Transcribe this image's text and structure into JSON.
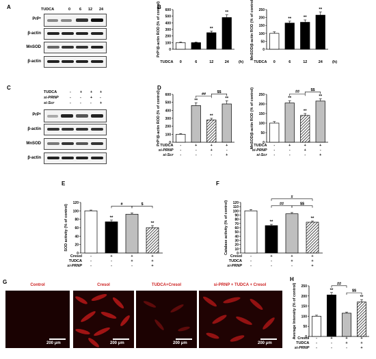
{
  "panel_labels": {
    "A": "A",
    "B": "B",
    "C": "C",
    "D": "D",
    "E": "E",
    "F": "F",
    "G": "G",
    "H": "H"
  },
  "blots_A": {
    "treat_label": "TUDCA",
    "doses": [
      "0",
      "6",
      "12",
      "24"
    ],
    "unit": "(h)",
    "rows": [
      "PrPᶜ",
      "β-actin",
      "MnSOD",
      "β-actin"
    ]
  },
  "blots_C": {
    "rows": [
      "PrPᶜ",
      "β-actin",
      "MnSOD",
      "β-actin"
    ],
    "conditions": [
      {
        "name": "TUDCA",
        "marks": [
          "-",
          "+",
          "+",
          "+"
        ]
      },
      {
        "name": "si-PRNP",
        "marks": [
          "-",
          "-",
          "+",
          "-"
        ]
      },
      {
        "name": "si-Scr",
        "marks": [
          "-",
          "-",
          "-",
          "+"
        ]
      }
    ]
  },
  "micro_G": {
    "titles": [
      "Control",
      "Cresol",
      "TUDCA+Cresol",
      "si-PRNP + TUDCA + Cresol"
    ],
    "scale": "200 μm"
  },
  "chart_data": [
    {
      "id": "B1",
      "type": "bar",
      "ylabel": "PrPᶜ/β-actin ROD (% of control)",
      "ylim": [
        0,
        600
      ],
      "yticks": [
        0,
        100,
        200,
        300,
        400,
        500,
        600
      ],
      "values": [
        100,
        100,
        250,
        480
      ],
      "errors": [
        10,
        8,
        25,
        40
      ],
      "stars": [
        "",
        "",
        "**",
        "**"
      ],
      "fills": [
        "white",
        "black",
        "black",
        "black"
      ],
      "xcond": [
        {
          "name": "TUDCA",
          "marks": [
            "0",
            "6",
            "12",
            "24"
          ]
        }
      ],
      "unit": "(h)",
      "brackets": []
    },
    {
      "id": "B2",
      "type": "bar",
      "ylabel": "MnSOD/β-actin ROD (% of control)",
      "ylim": [
        0,
        250
      ],
      "yticks": [
        0,
        50,
        100,
        150,
        200,
        250
      ],
      "values": [
        100,
        165,
        170,
        215
      ],
      "errors": [
        10,
        12,
        15,
        20
      ],
      "stars": [
        "",
        "**",
        "**",
        "**"
      ],
      "fills": [
        "white",
        "black",
        "black",
        "black"
      ],
      "xcond": [
        {
          "name": "TUDCA",
          "marks": [
            "0",
            "6",
            "12",
            "24"
          ]
        }
      ],
      "unit": "(h)",
      "brackets": []
    },
    {
      "id": "D1",
      "type": "bar",
      "ylabel": "PrPᶜ/β-actin ROD (% of control)",
      "ylim": [
        0,
        600
      ],
      "yticks": [
        0,
        100,
        200,
        300,
        400,
        500,
        600
      ],
      "values": [
        100,
        460,
        280,
        480
      ],
      "errors": [
        8,
        35,
        20,
        40
      ],
      "stars": [
        "",
        "**",
        "**",
        "**"
      ],
      "fills": [
        "white",
        "gray",
        "hatch",
        "gray"
      ],
      "xcond": [
        {
          "name": "TUDCA",
          "marks": [
            "-",
            "+",
            "+",
            "+"
          ]
        },
        {
          "name": "si-PRNP",
          "marks": [
            "-",
            "-",
            "+",
            "-"
          ]
        },
        {
          "name": "si-Scr",
          "marks": [
            "-",
            "-",
            "-",
            "+"
          ]
        }
      ],
      "brackets": [
        {
          "from": 1,
          "to": 2,
          "label": "##",
          "level": 0
        },
        {
          "from": 2,
          "to": 3,
          "label": "$$",
          "level": 0
        }
      ]
    },
    {
      "id": "D2",
      "type": "bar",
      "ylabel": "MnSOD/β-actin ROD (% of control)",
      "ylim": [
        0,
        250
      ],
      "yticks": [
        0,
        50,
        100,
        150,
        200,
        250
      ],
      "values": [
        100,
        205,
        140,
        215
      ],
      "errors": [
        8,
        12,
        10,
        12
      ],
      "stars": [
        "",
        "**",
        "**",
        "**"
      ],
      "fills": [
        "white",
        "gray",
        "hatch",
        "gray"
      ],
      "xcond": [
        {
          "name": "TUDCA",
          "marks": [
            "-",
            "+",
            "+",
            "+"
          ]
        },
        {
          "name": "si-PRNP",
          "marks": [
            "-",
            "-",
            "+",
            "-"
          ]
        },
        {
          "name": "si-Scr",
          "marks": [
            "-",
            "-",
            "-",
            "+"
          ]
        }
      ],
      "brackets": [
        {
          "from": 1,
          "to": 2,
          "label": "##",
          "level": 0
        },
        {
          "from": 2,
          "to": 3,
          "label": "$$",
          "level": 0
        }
      ]
    },
    {
      "id": "E",
      "type": "bar",
      "ylabel": "SOD activity (% of control)",
      "ylim": [
        0,
        120
      ],
      "yticks": [
        0,
        20,
        40,
        60,
        80,
        100,
        120
      ],
      "values": [
        100,
        74,
        92,
        60
      ],
      "errors": [
        2,
        4,
        3,
        5
      ],
      "stars": [
        "",
        "**",
        "",
        "**"
      ],
      "fills": [
        "white",
        "black",
        "gray",
        "hatch"
      ],
      "xcond": [
        {
          "name": "Cresol",
          "marks": [
            "-",
            "+",
            "+",
            "+"
          ]
        },
        {
          "name": "TUDCA",
          "marks": [
            "-",
            "-",
            "+",
            "+"
          ]
        },
        {
          "name": "si-PRNP",
          "marks": [
            "-",
            "-",
            "-",
            "+"
          ]
        }
      ],
      "brackets": [
        {
          "from": 1,
          "to": 2,
          "label": "#",
          "level": 0
        },
        {
          "from": 2,
          "to": 3,
          "label": "$",
          "level": 0
        }
      ]
    },
    {
      "id": "F",
      "type": "bar",
      "ylabel": "Catalase activity (% of control)",
      "ylim": [
        0,
        120
      ],
      "yticks": [
        0,
        10,
        20,
        30,
        40,
        50,
        60,
        70,
        80,
        90,
        100,
        110,
        120
      ],
      "values": [
        100,
        65,
        93,
        73
      ],
      "errors": [
        3,
        3,
        3,
        3
      ],
      "stars": [
        "",
        "**",
        "",
        "**"
      ],
      "fills": [
        "white",
        "black",
        "gray",
        "hatch"
      ],
      "xcond": [
        {
          "name": "Cresol",
          "marks": [
            "-",
            "+",
            "+",
            "+"
          ]
        },
        {
          "name": "TUDCA",
          "marks": [
            "-",
            "-",
            "+",
            "+"
          ]
        },
        {
          "name": "si-PRNP",
          "marks": [
            "-",
            "-",
            "-",
            "+"
          ]
        }
      ],
      "brackets": [
        {
          "from": 1,
          "to": 2,
          "label": "##",
          "level": 0
        },
        {
          "from": 2,
          "to": 3,
          "label": "$$",
          "level": 0
        },
        {
          "from": 1,
          "to": 3,
          "label": "#",
          "level": 1
        }
      ]
    },
    {
      "id": "H",
      "type": "bar",
      "ylabel": "Average Intensity (% of control)",
      "ylim": [
        0,
        250
      ],
      "yticks": [
        0,
        50,
        100,
        150,
        200,
        250
      ],
      "values": [
        100,
        205,
        115,
        170
      ],
      "errors": [
        5,
        12,
        5,
        12
      ],
      "stars": [
        "",
        "**",
        "",
        "**"
      ],
      "fills": [
        "white",
        "black",
        "gray",
        "hatch"
      ],
      "xcond": [
        {
          "name": "Cresol",
          "marks": [
            "-",
            "+",
            "+",
            "+"
          ]
        },
        {
          "name": "TUDCA",
          "marks": [
            "-",
            "-",
            "+",
            "+"
          ]
        },
        {
          "name": "si-PRNP",
          "marks": [
            "-",
            "-",
            "-",
            "+"
          ]
        }
      ],
      "brackets": [
        {
          "from": 1,
          "to": 2,
          "label": "##",
          "level": 0
        },
        {
          "from": 2,
          "to": 3,
          "label": "$$",
          "level": 0
        }
      ]
    }
  ]
}
